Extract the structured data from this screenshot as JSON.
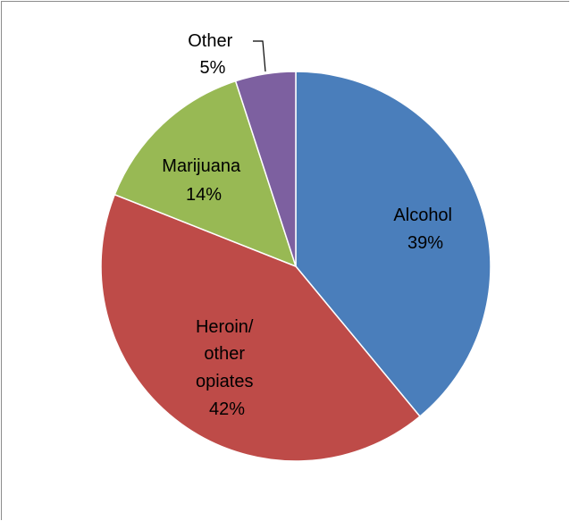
{
  "chart_data": {
    "type": "pie",
    "title": "",
    "start_angle_deg": 0,
    "direction": "clockwise",
    "slices": [
      {
        "label": "Alcohol",
        "value": 39,
        "display": "39%",
        "color": "#4A7EBB"
      },
      {
        "label": "Heroin/ other opiates",
        "value": 42,
        "display": "42%",
        "color": "#BE4B48"
      },
      {
        "label": "Marijuana",
        "value": 14,
        "display": "14%",
        "color": "#98B954"
      },
      {
        "label": "Other",
        "value": 5,
        "display": "5%",
        "color": "#7D60A0"
      }
    ],
    "legend": "none"
  },
  "labels": {
    "alcohol": {
      "line1": "Alcohol",
      "line2": "39%"
    },
    "heroin": {
      "line1": "Heroin/",
      "line2": "other",
      "line3": "opiates",
      "line4": "42%"
    },
    "marijuana": {
      "line1": "Marijuana",
      "line2": "14%"
    },
    "other": {
      "line1": "Other",
      "line2": "5%"
    }
  }
}
